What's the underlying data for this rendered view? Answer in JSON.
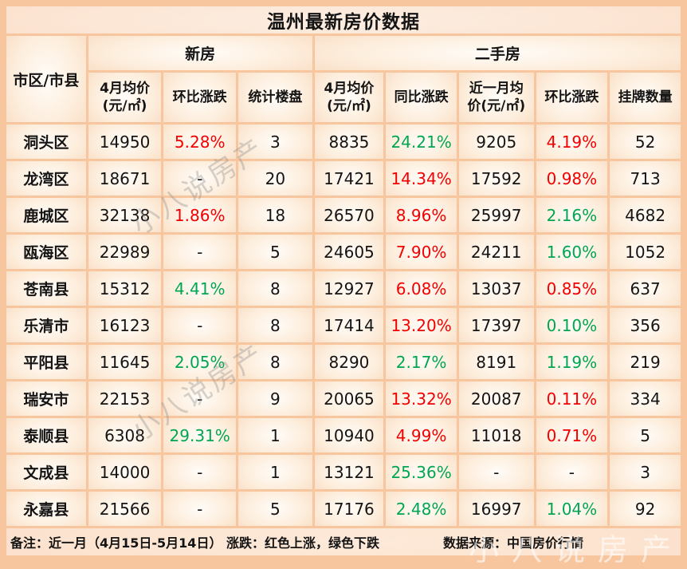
{
  "title": "温州最新房价数据",
  "watermark_text": "小八说房产",
  "colors": {
    "red": "#F40000",
    "green": "#00A651",
    "black": "#141414",
    "background_border": "#f7c69e"
  },
  "table": {
    "corner_header": "市区/市县",
    "band_headers": [
      {
        "label": "新房",
        "span": 3
      },
      {
        "label": "二手房",
        "span": 5
      }
    ],
    "column_headers": [
      "4月均价\n(元/㎡)",
      "环比涨跌",
      "统计楼盘",
      "4月均价\n(元/㎡)",
      "同比涨跌",
      "近一月均\n价(元/㎡)",
      "环比涨跌",
      "挂牌数量"
    ],
    "rows": [
      {
        "district": "洞头区",
        "values": [
          "14950",
          "5.28%",
          "3",
          "8835",
          "24.21%",
          "9205",
          "4.19%",
          "52"
        ],
        "value_colors": [
          "black",
          "red",
          "black",
          "black",
          "green",
          "black",
          "red",
          "black"
        ]
      },
      {
        "district": "龙湾区",
        "values": [
          "18671",
          "-",
          "20",
          "17421",
          "14.34%",
          "17592",
          "0.98%",
          "713"
        ],
        "value_colors": [
          "black",
          "black",
          "black",
          "black",
          "red",
          "black",
          "red",
          "black"
        ]
      },
      {
        "district": "鹿城区",
        "values": [
          "32138",
          "1.86%",
          "18",
          "26570",
          "8.96%",
          "25997",
          "2.16%",
          "4682"
        ],
        "value_colors": [
          "black",
          "red",
          "black",
          "black",
          "red",
          "black",
          "green",
          "black"
        ]
      },
      {
        "district": "瓯海区",
        "values": [
          "22989",
          "-",
          "5",
          "24605",
          "7.90%",
          "24211",
          "1.60%",
          "1052"
        ],
        "value_colors": [
          "black",
          "black",
          "black",
          "black",
          "red",
          "black",
          "green",
          "black"
        ]
      },
      {
        "district": "苍南县",
        "values": [
          "15312",
          "4.41%",
          "8",
          "12927",
          "6.08%",
          "13037",
          "0.85%",
          "637"
        ],
        "value_colors": [
          "black",
          "green",
          "black",
          "black",
          "red",
          "black",
          "red",
          "black"
        ]
      },
      {
        "district": "乐清市",
        "values": [
          "16123",
          "-",
          "8",
          "17414",
          "13.20%",
          "17397",
          "0.10%",
          "356"
        ],
        "value_colors": [
          "black",
          "black",
          "black",
          "black",
          "red",
          "black",
          "green",
          "black"
        ]
      },
      {
        "district": "平阳县",
        "values": [
          "11645",
          "2.05%",
          "8",
          "8290",
          "2.17%",
          "8191",
          "1.19%",
          "219"
        ],
        "value_colors": [
          "black",
          "green",
          "black",
          "black",
          "green",
          "black",
          "green",
          "black"
        ]
      },
      {
        "district": "瑞安市",
        "values": [
          "22153",
          "-",
          "9",
          "20065",
          "13.32%",
          "20087",
          "0.11%",
          "334"
        ],
        "value_colors": [
          "black",
          "black",
          "black",
          "black",
          "red",
          "black",
          "red",
          "black"
        ]
      },
      {
        "district": "泰顺县",
        "values": [
          "6308",
          "29.31%",
          "1",
          "10940",
          "4.99%",
          "11018",
          "0.71%",
          "5"
        ],
        "value_colors": [
          "black",
          "green",
          "black",
          "black",
          "red",
          "black",
          "red",
          "black"
        ]
      },
      {
        "district": "文成县",
        "values": [
          "14000",
          "-",
          "1",
          "13121",
          "25.36%",
          "-",
          "-",
          "3"
        ],
        "value_colors": [
          "black",
          "black",
          "black",
          "black",
          "green",
          "black",
          "black",
          "black"
        ]
      },
      {
        "district": "永嘉县",
        "values": [
          "21566",
          "-",
          "5",
          "17176",
          "2.48%",
          "16997",
          "1.04%",
          "92"
        ],
        "value_colors": [
          "black",
          "black",
          "black",
          "black",
          "green",
          "black",
          "green",
          "black"
        ]
      }
    ]
  },
  "footer": {
    "note": "备注：近一月（4月15日-5月14日）  涨跌：红色上涨，绿色下跌",
    "source": "数据来源：中国房价行情"
  }
}
